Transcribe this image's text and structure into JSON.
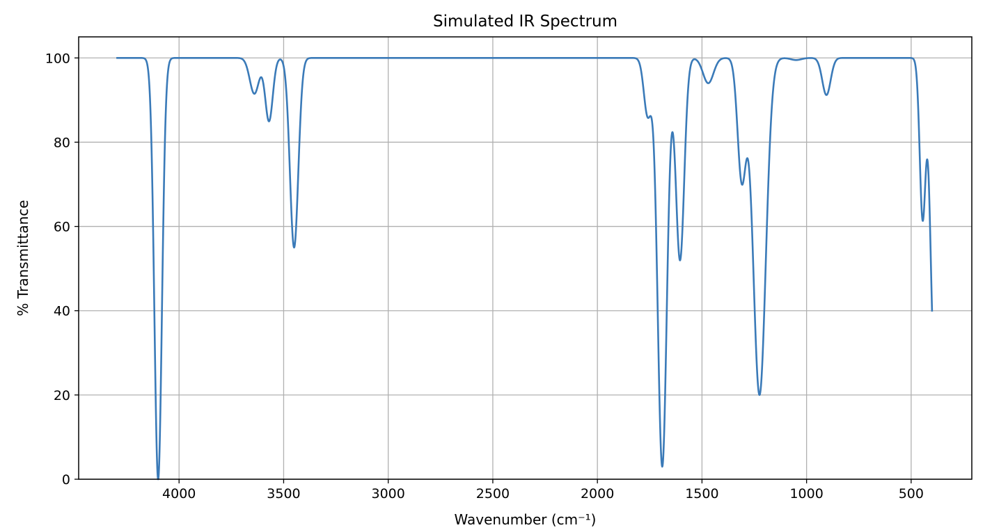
{
  "chart_data": {
    "type": "line",
    "title": "Simulated IR Spectrum",
    "xlabel": "Wavenumber (cm⁻¹)",
    "ylabel": "% Transmittance",
    "x_reversed": true,
    "xlim": [
      4480,
      210
    ],
    "ylim": [
      0,
      105
    ],
    "x_ticks": [
      4000,
      3500,
      3000,
      2500,
      2000,
      1500,
      1000,
      500
    ],
    "y_ticks": [
      0,
      20,
      40,
      60,
      80,
      100
    ],
    "x_tick_labels": [
      "4000",
      "3500",
      "3000",
      "2500",
      "2000",
      "1500",
      "1000",
      "500"
    ],
    "y_tick_labels": [
      "0",
      "20",
      "40",
      "60",
      "80",
      "100"
    ],
    "grid": true,
    "legend": "none",
    "color": "#3a7ab8",
    "x_range": [
      4300,
      400
    ],
    "baseline": 100,
    "bands": [
      {
        "center": 4100,
        "width": 18,
        "depth": 100
      },
      {
        "center": 3640,
        "width": 22,
        "depth": 8.5
      },
      {
        "center": 3570,
        "width": 18,
        "depth": 15
      },
      {
        "center": 3450,
        "width": 20,
        "depth": 45
      },
      {
        "center": 1760,
        "width": 18,
        "depth": 13.5
      },
      {
        "center": 1690,
        "width": 22,
        "depth": 97
      },
      {
        "center": 1605,
        "width": 20,
        "depth": 48
      },
      {
        "center": 1470,
        "width": 25,
        "depth": 6
      },
      {
        "center": 1310,
        "width": 20,
        "depth": 28.5
      },
      {
        "center": 1225,
        "width": 30,
        "depth": 80
      },
      {
        "center": 1050,
        "width": 25,
        "depth": 0.5
      },
      {
        "center": 905,
        "width": 20,
        "depth": 8.8
      },
      {
        "center": 445,
        "width": 14,
        "depth": 38
      },
      {
        "center": 390,
        "width": 18,
        "depth": 70
      }
    ]
  }
}
